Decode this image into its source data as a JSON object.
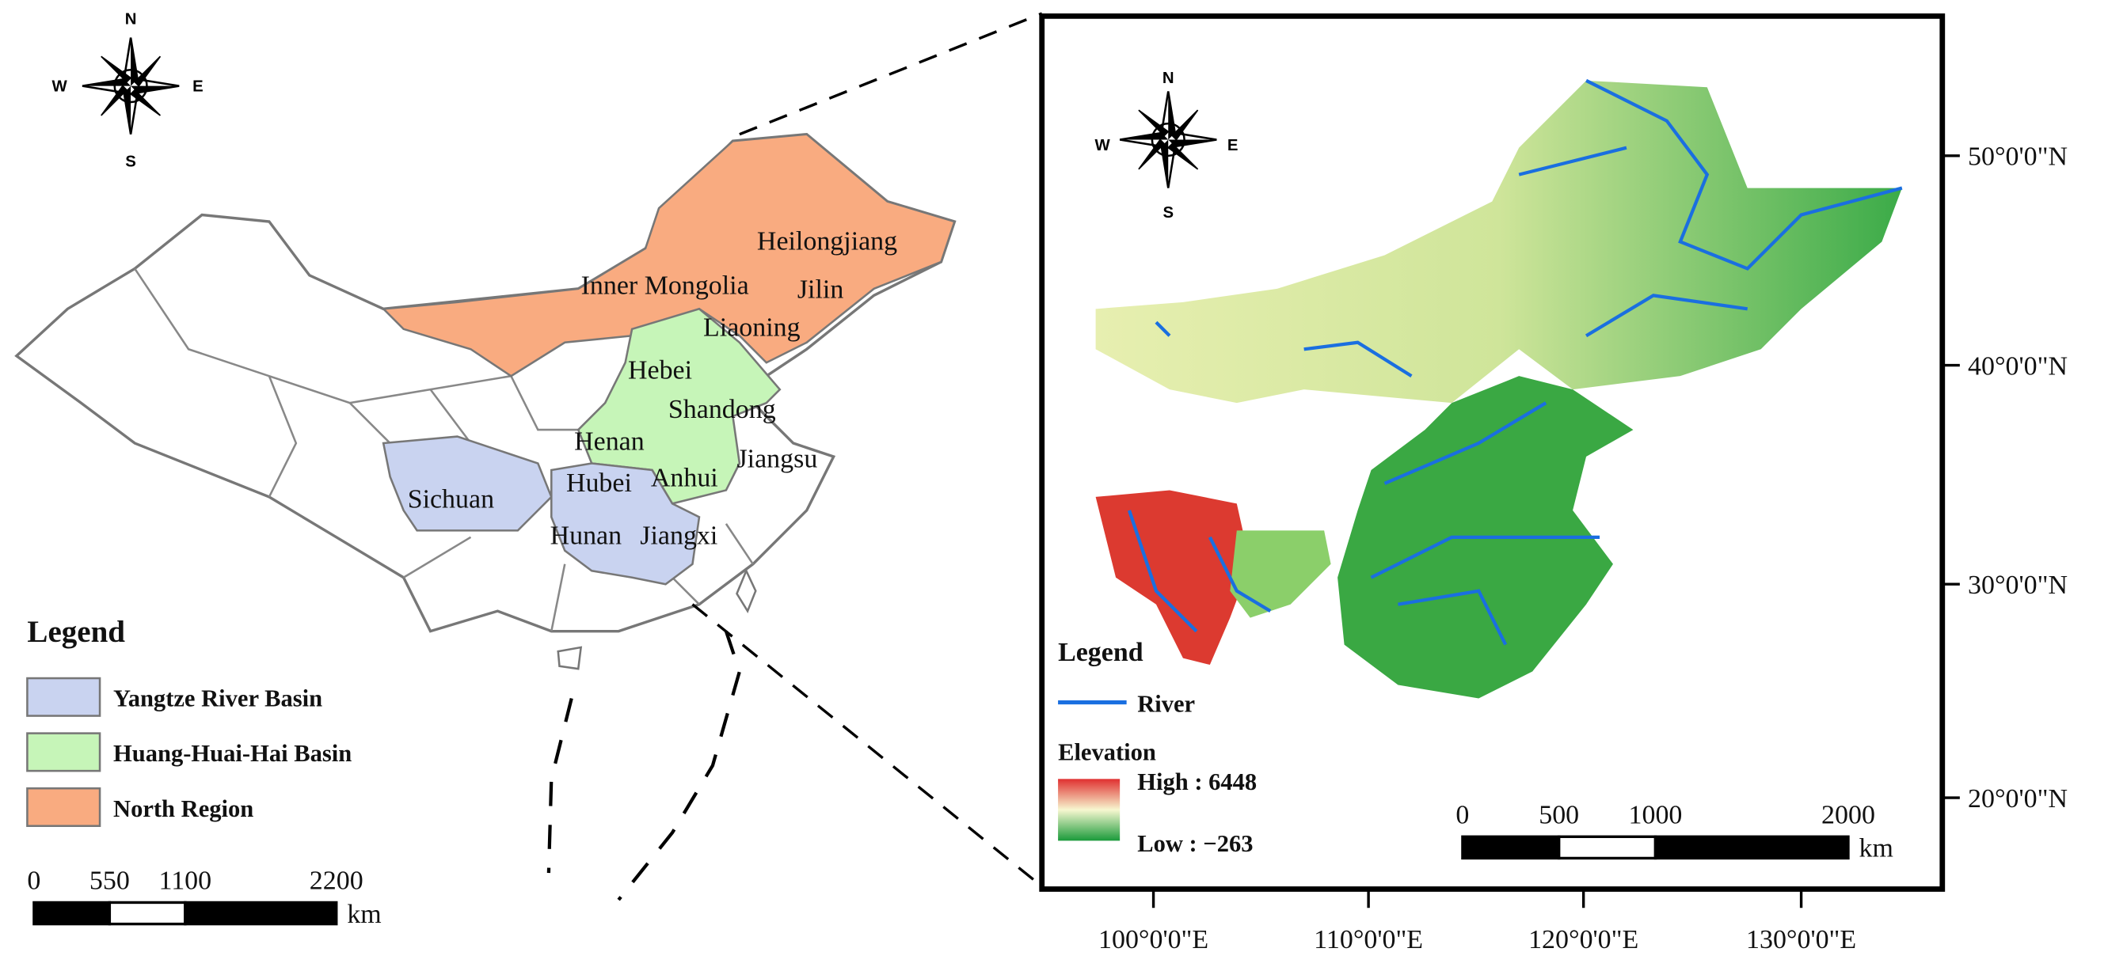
{
  "left_map": {
    "compass": {
      "n": "N",
      "e": "E",
      "s": "S",
      "w": "W"
    },
    "provinces": [
      "Heilongjiang",
      "Inner Mongolia",
      "Jilin",
      "Liaoning",
      "Hebei",
      "Shandong",
      "Henan",
      "Jiangsu",
      "Anhui",
      "Hubei",
      "Sichuan",
      "Hunan",
      "Jiangxi"
    ],
    "legend": {
      "title": "Legend",
      "items": [
        {
          "label": "Yangtze River Basin",
          "color": "#c9d3f0"
        },
        {
          "label": "Huang-Huai-Hai Basin",
          "color": "#c6f5b8"
        },
        {
          "label": "North Region",
          "color": "#f9ab80"
        }
      ]
    },
    "scale_bar": {
      "ticks": [
        0,
        550,
        1100,
        2200
      ],
      "unit": "km"
    }
  },
  "right_map": {
    "compass": {
      "n": "N",
      "e": "E",
      "s": "S",
      "w": "W"
    },
    "legend": {
      "title": "Legend",
      "river": "River",
      "elevation_title": "Elevation",
      "high": "High : 6448",
      "low": "Low : −263"
    },
    "scale_bar": {
      "ticks": [
        0,
        500,
        1000,
        2000
      ],
      "unit": "km"
    },
    "latitude_labels": [
      "50°0'0\"N",
      "40°0'0\"N",
      "30°0'0\"N",
      "20°0'0\"N"
    ],
    "longitude_labels": [
      "100°0'0\"E",
      "110°0'0\"E",
      "120°0'0\"E",
      "130°0'0\"E"
    ]
  }
}
